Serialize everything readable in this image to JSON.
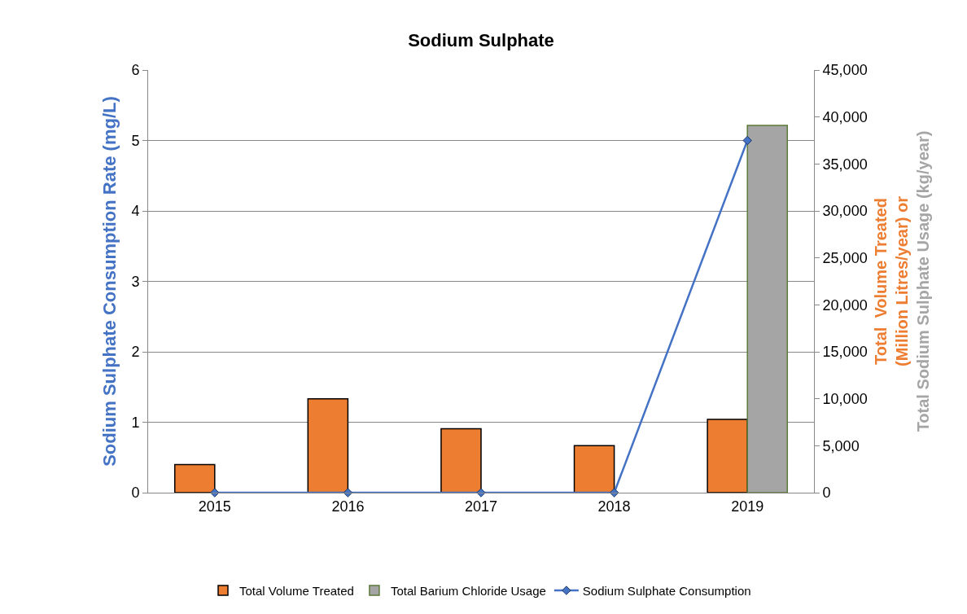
{
  "chart_data": {
    "type": "bar",
    "title": "Sodium Sulphate",
    "ylabel": "Sodium Sulphate Consumption Rate (mg/L)",
    "y2label": "Total  Volume Treated\n(Million Litres/year) or\nTotal Sodium Sulphate Usage (kg/year)",
    "categories": [
      "2015",
      "2016",
      "2017",
      "2018",
      "2019"
    ],
    "series": [
      {
        "name": "Total Volume Treated",
        "axis": "y2",
        "color": "#ed7d31",
        "values": [
          3000,
          10000,
          6800,
          5000,
          7800
        ]
      },
      {
        "name": "Total Barium Chloride Usage",
        "axis": "y2",
        "color": "#a5a5a5",
        "values": [
          null,
          null,
          null,
          null,
          39100
        ]
      },
      {
        "name": "Sodium Sulphate Consumption",
        "type": "line",
        "color": "#4472c4",
        "values": [
          0,
          0,
          0,
          0,
          5.0
        ]
      }
    ],
    "ylim": [
      0,
      6
    ],
    "yticks": [
      0,
      1,
      2,
      3,
      4,
      5,
      6
    ],
    "y2lim": [
      0,
      45000
    ],
    "y2ticks": [
      0,
      {
        "value": 5000,
        "label": "5,000"
      },
      {
        "value": 10000,
        "label": "10,000"
      },
      {
        "value": 15000,
        "label": "15,000"
      },
      {
        "value": 20000,
        "label": "20,000"
      },
      {
        "value": 25000,
        "label": "25,000"
      },
      {
        "value": 30000,
        "label": "30,000"
      },
      {
        "value": 35000,
        "label": "35,000"
      },
      {
        "value": 40000,
        "label": "40,000"
      },
      {
        "value": 45000,
        "label": "45,000"
      }
    ],
    "grid": "y",
    "legend": "bottom",
    "marker": "diamond",
    "line_style": "solid"
  }
}
